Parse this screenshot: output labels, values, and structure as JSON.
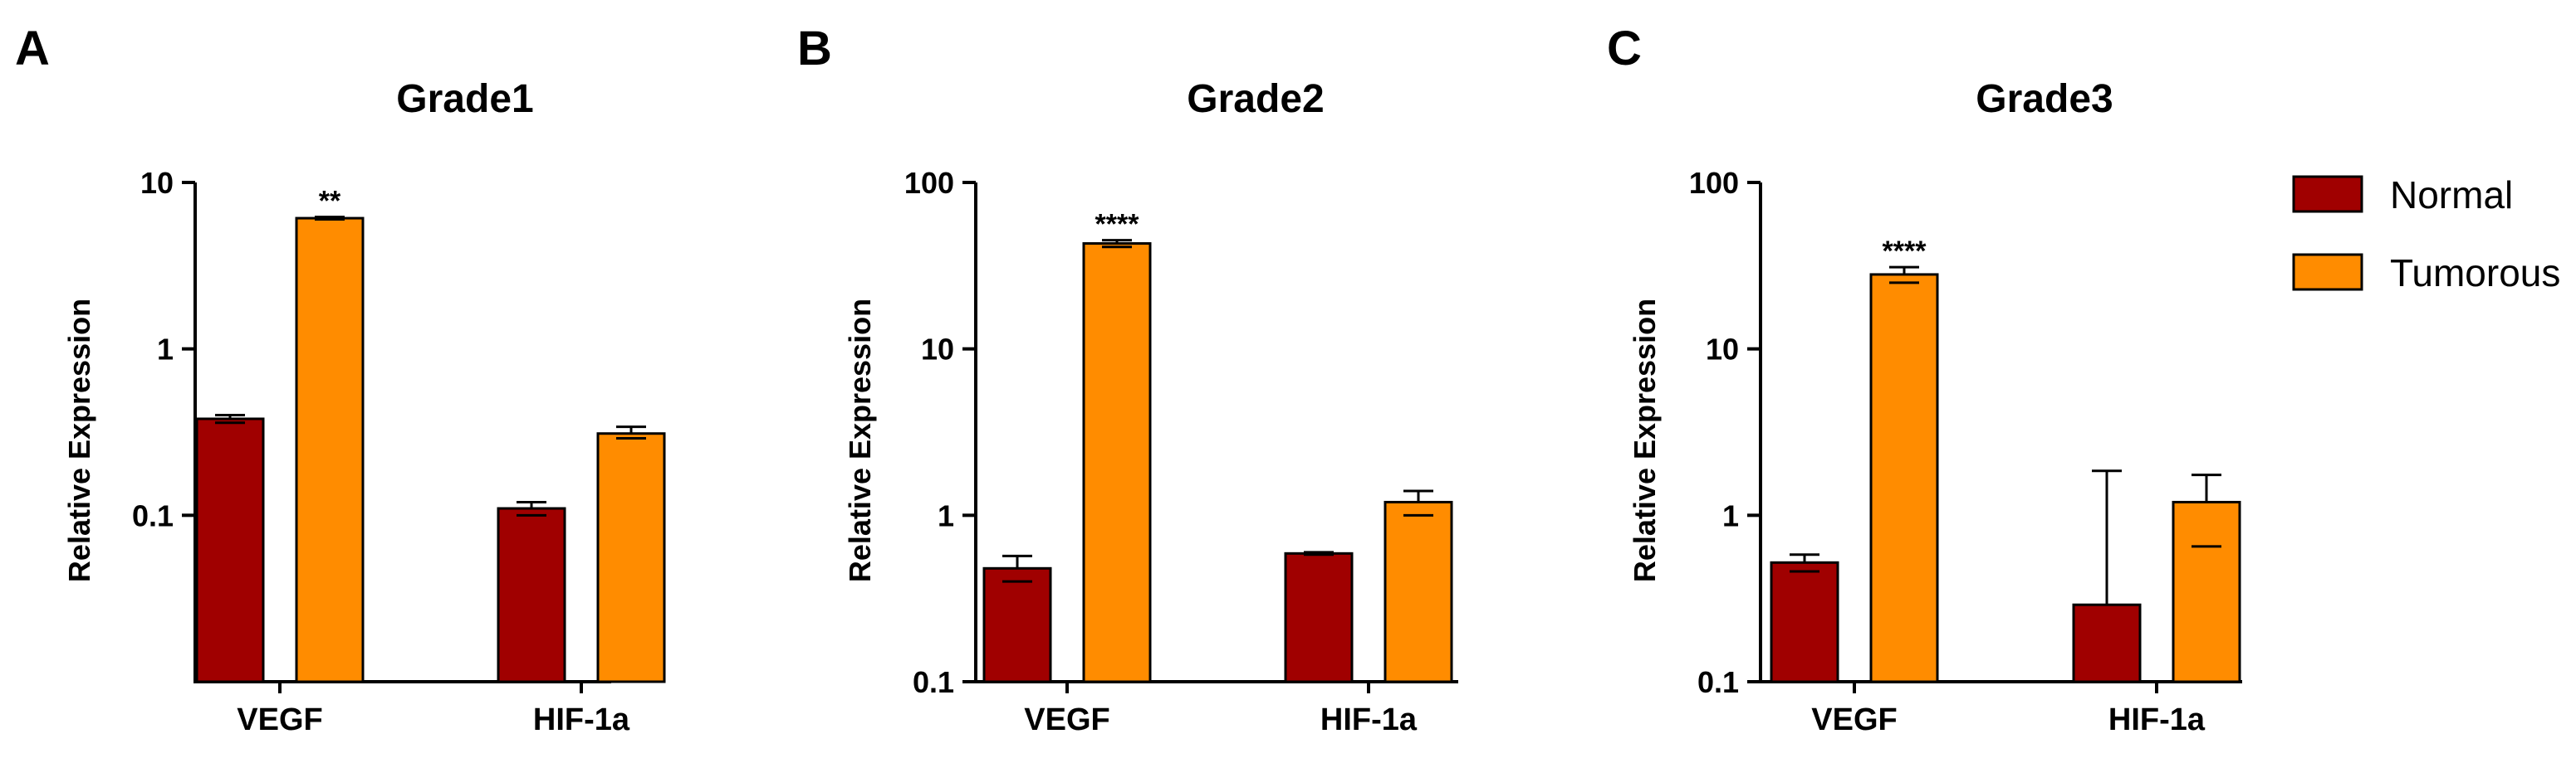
{
  "legend": {
    "items": [
      {
        "label": "Normal",
        "color": "#a00000"
      },
      {
        "label": "Tumorous",
        "color": "#ff8c00"
      }
    ]
  },
  "chart_data": [
    {
      "panel": "A",
      "type": "bar",
      "title": "Grade1",
      "ylabel": "Relative Expression",
      "yscale": "log",
      "ylim": [
        0.01,
        10
      ],
      "yticks": [
        "10",
        "1",
        "0.1"
      ],
      "categories": [
        "VEGF",
        "HIF-1a"
      ],
      "series": [
        {
          "name": "Normal",
          "values": [
            0.38,
            0.11
          ],
          "errors": [
            [
              0.36,
              0.4
            ],
            [
              0.1,
              0.12
            ]
          ]
        },
        {
          "name": "Tumorous",
          "values": [
            6.1,
            0.31
          ],
          "errors": [
            [
              6.0,
              6.2
            ],
            [
              0.29,
              0.34
            ]
          ]
        }
      ],
      "significance": [
        {
          "category": "VEGF",
          "series": "Tumorous",
          "label": "**"
        }
      ]
    },
    {
      "panel": "B",
      "type": "bar",
      "title": "Grade2",
      "ylabel": "Relative Expression",
      "yscale": "log",
      "ylim": [
        0.1,
        100
      ],
      "yticks": [
        "100",
        "10",
        "1",
        "0.1"
      ],
      "categories": [
        "VEGF",
        "HIF-1a"
      ],
      "series": [
        {
          "name": "Normal",
          "values": [
            0.48,
            0.59
          ],
          "errors": [
            [
              0.4,
              0.57
            ],
            [
              0.58,
              0.6
            ]
          ]
        },
        {
          "name": "Tumorous",
          "values": [
            43,
            1.2
          ],
          "errors": [
            [
              41,
              45
            ],
            [
              1.0,
              1.4
            ]
          ]
        }
      ],
      "significance": [
        {
          "category": "VEGF",
          "series": "Tumorous",
          "label": "****"
        }
      ]
    },
    {
      "panel": "C",
      "type": "bar",
      "title": "Grade3",
      "ylabel": "Relative Expression",
      "yscale": "log",
      "ylim": [
        0.1,
        100
      ],
      "yticks": [
        "100",
        "10",
        "1",
        "0.1"
      ],
      "categories": [
        "VEGF",
        "HIF-1a"
      ],
      "series": [
        {
          "name": "Normal",
          "values": [
            0.52,
            0.29
          ],
          "errors": [
            [
              0.46,
              0.58
            ],
            [
              0.1,
              1.85
            ]
          ]
        },
        {
          "name": "Tumorous",
          "values": [
            28,
            1.2
          ],
          "errors": [
            [
              25,
              31
            ],
            [
              0.65,
              1.75
            ]
          ]
        }
      ],
      "significance": [
        {
          "category": "VEGF",
          "series": "Tumorous",
          "label": "****"
        }
      ]
    }
  ]
}
